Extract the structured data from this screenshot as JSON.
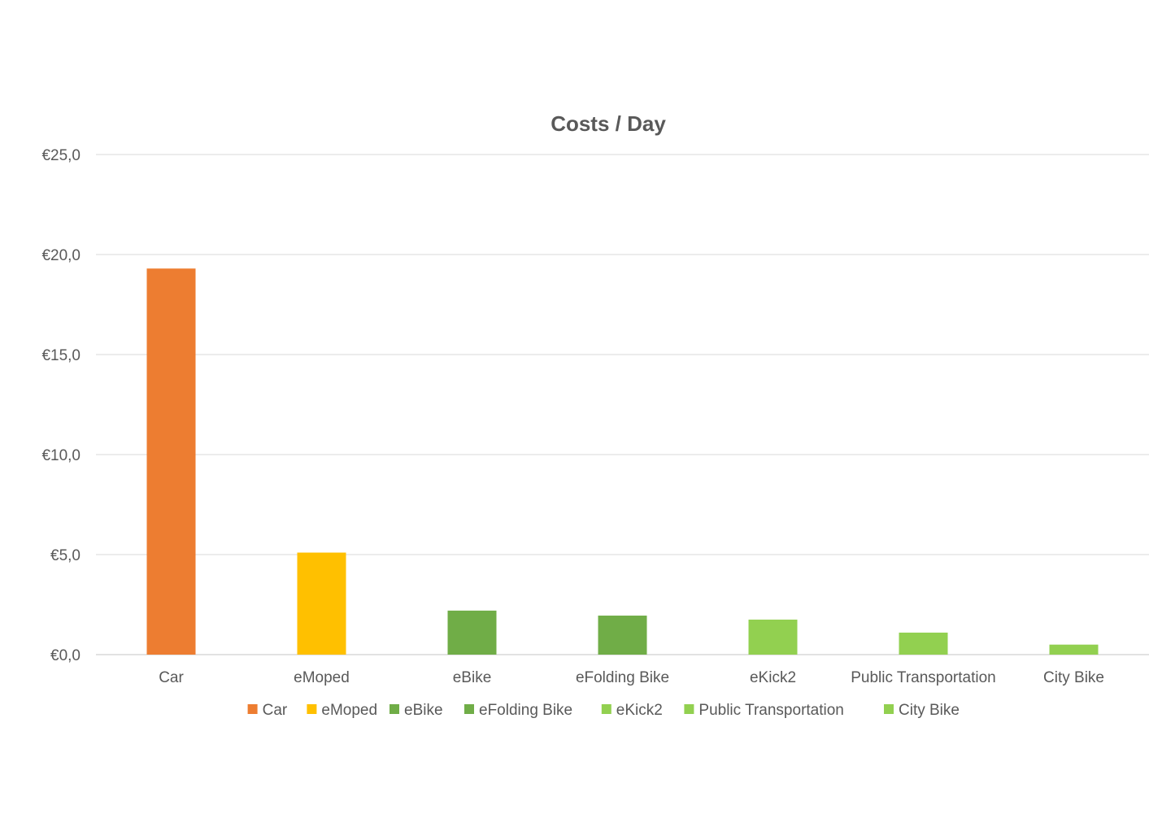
{
  "chart_data": {
    "type": "bar",
    "title": "Costs / Day",
    "xlabel": "",
    "ylabel": "",
    "categories": [
      "Car",
      "eMoped",
      "eBike",
      "eFolding Bike",
      "eKick2",
      "Public Transportation",
      "City Bike"
    ],
    "values": [
      19.3,
      5.1,
      2.2,
      1.95,
      1.75,
      1.1,
      0.5
    ],
    "colors": [
      "#ed7d31",
      "#ffc000",
      "#70ad47",
      "#70ad47",
      "#92d050",
      "#92d050",
      "#92d050"
    ],
    "ylim": [
      0,
      25
    ],
    "yticks": [
      0,
      5,
      10,
      15,
      20,
      25
    ],
    "ytick_labels": [
      "€0,0",
      "€5,0",
      "€10,0",
      "€15,0",
      "€20,0",
      "€25,0"
    ],
    "grid": true,
    "legend": {
      "placement": "bottom",
      "entries": [
        "Car",
        "eMoped",
        "eBike",
        "eFolding Bike",
        "eKick2",
        "Public Transportation",
        "City Bike"
      ]
    }
  }
}
